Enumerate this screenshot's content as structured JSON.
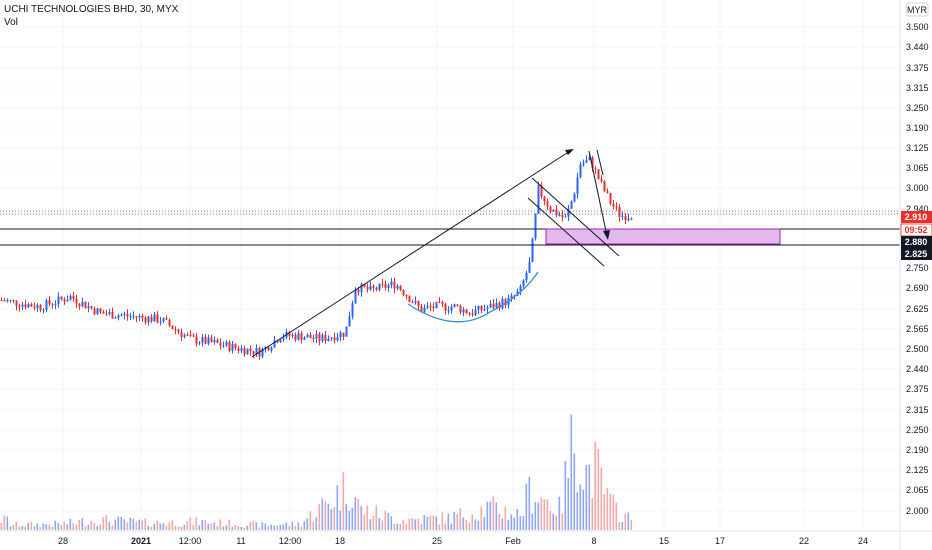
{
  "header": {
    "title": "UCHI TECHNOLOGIES BHD, 30, MYX",
    "vol_label": "Vol"
  },
  "currency_label": "MYR",
  "colors": {
    "up": "#2962ff",
    "down": "#e5302c",
    "vol_up": "#8fa7f2",
    "vol_down": "#f0a8a8",
    "drawing": "#131722",
    "curve": "#2f8fd6",
    "zone_fill": "#e2b8ef",
    "zone_border": "#9c27b0",
    "price_tag": "#e5302c"
  },
  "y_axis": {
    "ticks": [
      "3.500",
      "3.440",
      "3.375",
      "3.315",
      "3.250",
      "3.190",
      "3.125",
      "3.065",
      "3.000",
      "2.940",
      "2.750",
      "2.690",
      "2.625",
      "2.565",
      "2.500",
      "2.440",
      "2.375",
      "2.315",
      "2.250",
      "2.190",
      "2.125",
      "2.065",
      "2.000"
    ],
    "price_range": [
      1.97,
      3.55
    ]
  },
  "x_axis": {
    "ticks": [
      "28",
      "2021",
      "12:00",
      "11",
      "12:00",
      "18",
      "25",
      "Feb",
      "8",
      "15",
      "17",
      "22",
      "24"
    ]
  },
  "labels": {
    "last_price": "2.910",
    "countdown": "09:52",
    "level_upper": "2.880",
    "level_lower": "2.825"
  },
  "chart_data": {
    "type": "candlestick",
    "title": "UCHI TECHNOLOGIES BHD, 30, MYX",
    "last_price": 2.91,
    "horizontal_levels": [
      2.88,
      2.825
    ],
    "price_trend": [
      [
        0,
        2.66
      ],
      [
        20,
        2.65
      ],
      [
        40,
        2.64
      ],
      [
        70,
        2.67
      ],
      [
        100,
        2.62
      ],
      [
        130,
        2.61
      ],
      [
        160,
        2.6
      ],
      [
        190,
        2.54
      ],
      [
        210,
        2.53
      ],
      [
        240,
        2.51
      ],
      [
        260,
        2.5
      ],
      [
        280,
        2.55
      ],
      [
        300,
        2.55
      ],
      [
        320,
        2.54
      ],
      [
        345,
        2.56
      ],
      [
        355,
        2.7
      ],
      [
        370,
        2.69
      ],
      [
        395,
        2.71
      ],
      [
        405,
        2.68
      ],
      [
        420,
        2.63
      ],
      [
        435,
        2.64
      ],
      [
        455,
        2.64
      ],
      [
        470,
        2.62
      ],
      [
        490,
        2.64
      ],
      [
        510,
        2.66
      ],
      [
        520,
        2.69
      ],
      [
        530,
        2.78
      ],
      [
        538,
        3.0
      ],
      [
        550,
        2.94
      ],
      [
        565,
        2.91
      ],
      [
        573,
        2.98
      ],
      [
        580,
        3.08
      ],
      [
        590,
        3.09
      ],
      [
        600,
        3.02
      ],
      [
        610,
        2.96
      ],
      [
        620,
        2.92
      ],
      [
        632,
        2.92
      ]
    ],
    "volume_trend": [
      [
        10,
        0.05
      ],
      [
        60,
        0.06
      ],
      [
        100,
        0.1
      ],
      [
        150,
        0.07
      ],
      [
        200,
        0.08
      ],
      [
        260,
        0.05
      ],
      [
        300,
        0.06
      ],
      [
        350,
        0.45
      ],
      [
        360,
        0.2
      ],
      [
        400,
        0.1
      ],
      [
        450,
        0.12
      ],
      [
        490,
        0.22
      ],
      [
        520,
        0.15
      ],
      [
        530,
        0.4
      ],
      [
        545,
        0.3
      ],
      [
        560,
        0.2
      ],
      [
        575,
        1.0
      ],
      [
        585,
        0.55
      ],
      [
        595,
        0.6
      ],
      [
        610,
        0.25
      ],
      [
        630,
        0.1
      ]
    ]
  }
}
